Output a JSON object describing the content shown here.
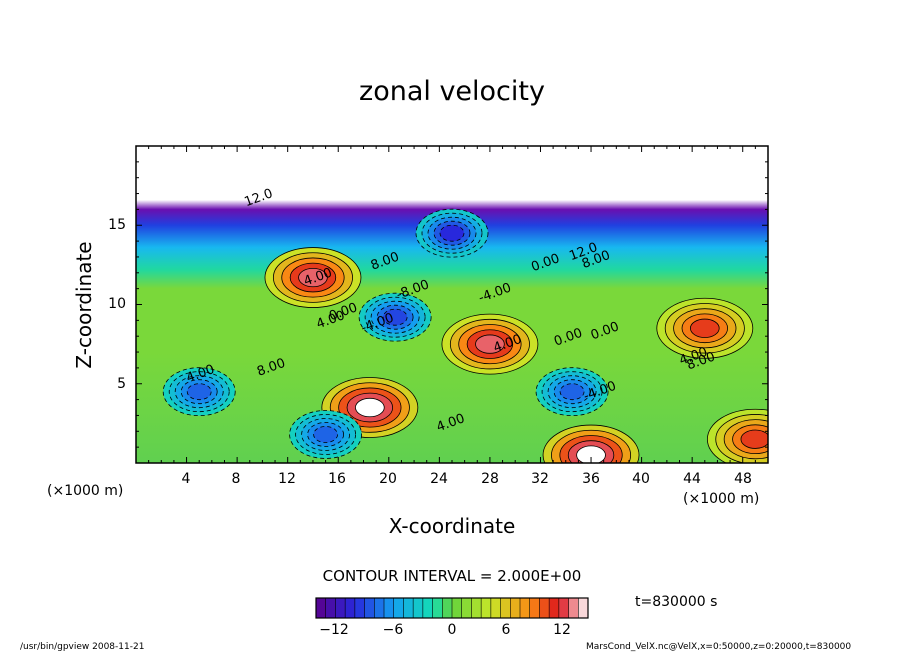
{
  "chart_data": {
    "type": "heatmap",
    "title": "zonal velocity",
    "xlabel": "X-coordinate",
    "ylabel": "Z-coordinate",
    "x_unit": "(×1000 m)",
    "xlim": [
      0,
      50
    ],
    "ylim": [
      0,
      20
    ],
    "x_ticks": [
      "4",
      "8",
      "12",
      "16",
      "20",
      "24",
      "28",
      "32",
      "36",
      "40",
      "44",
      "48"
    ],
    "y_ticks": [
      "5",
      "10",
      "15"
    ],
    "contour_interval_text": "CONTOUR INTERVAL = 2.000E+00",
    "time_text": "t=830000  s",
    "colorbar": {
      "range": [
        -14,
        14
      ],
      "ticks": [
        "−12",
        "−6",
        "0",
        "6",
        "12"
      ]
    },
    "contour_labels": [
      "12.0",
      "8.00",
      "4.00",
      "0.00",
      "-8.00",
      "-4.00",
      "12.0",
      "8.00",
      "0.00",
      "4.00",
      "0.00",
      "8.00",
      "4.00",
      "4.00",
      "0.00",
      "-4.00",
      "4.00",
      "8.00",
      "-4.00",
      "4.00"
    ],
    "features": [
      {
        "x": 18.5,
        "z": 3.5,
        "value": 14
      },
      {
        "x": 14,
        "z": 11.7,
        "value": 12
      },
      {
        "x": 28,
        "z": 7.5,
        "value": 12
      },
      {
        "x": 45,
        "z": 8.5,
        "value": 10
      },
      {
        "x": 36,
        "z": 0.5,
        "value": 14
      },
      {
        "x": 20.5,
        "z": 9.2,
        "value": -9
      },
      {
        "x": 34.5,
        "z": 4.5,
        "value": -8
      },
      {
        "x": 5,
        "z": 4.5,
        "value": -8
      },
      {
        "x": 15,
        "z": 1.8,
        "value": -8
      },
      {
        "x": 25,
        "z": 14.5,
        "value": -10
      },
      {
        "x": 49,
        "z": 1.5,
        "value": 10
      }
    ],
    "grid": false
  },
  "footer": {
    "left": "/usr/bin/gpview  2008-11-21",
    "right": "MarsCond_VelX.nc@VelX,x=0:50000,z=0:20000,t=830000"
  }
}
